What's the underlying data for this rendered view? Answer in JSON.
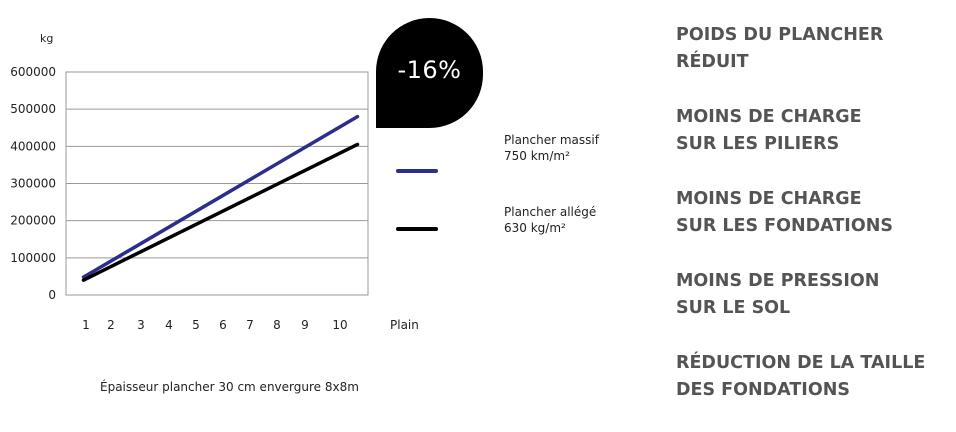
{
  "chart_data": {
    "type": "line",
    "unit_label": "kg",
    "x": [
      1,
      2,
      3,
      4,
      5,
      6,
      7,
      8,
      9,
      10
    ],
    "x_tick_labels": [
      "1",
      "2",
      "3",
      "4",
      "5",
      "6",
      "7",
      "8",
      "9",
      "10"
    ],
    "extra_x_label": "Plain",
    "y_ticks": [
      0,
      100000,
      200000,
      300000,
      400000,
      500000,
      600000
    ],
    "y_tick_labels": [
      "0",
      "100000",
      "200000",
      "300000",
      "400000",
      "500000",
      "600000"
    ],
    "ylim": [
      0,
      600000
    ],
    "grid": true,
    "legend_placement": "right",
    "series": [
      {
        "name": "Plancher massif",
        "detail": "750 km/m²",
        "color": "#2e2d8c",
        "start": [
          0.9,
          48000
        ],
        "end": [
          10.5,
          480000
        ]
      },
      {
        "name": "Plancher allégé",
        "detail": "630 kg/m²",
        "color": "#000000",
        "start": [
          0.9,
          40000
        ],
        "end": [
          10.5,
          405000
        ]
      }
    ],
    "caption": "Épaisseur plancher 30 cm envergure 8x8m"
  },
  "badge": {
    "text": "-16%",
    "color": "#000000"
  },
  "benefits": [
    [
      "POIDS DU PLANCHER",
      "RÉDUIT"
    ],
    [
      "MOINS DE CHARGE",
      "SUR LES PILIERS"
    ],
    [
      "MOINS DE CHARGE",
      "SUR LES FONDATIONS"
    ],
    [
      "MOINS DE PRESSION",
      "SUR LE SOL"
    ],
    [
      "RÉDUCTION DE LA TAILLE",
      "DES FONDATIONS"
    ]
  ]
}
